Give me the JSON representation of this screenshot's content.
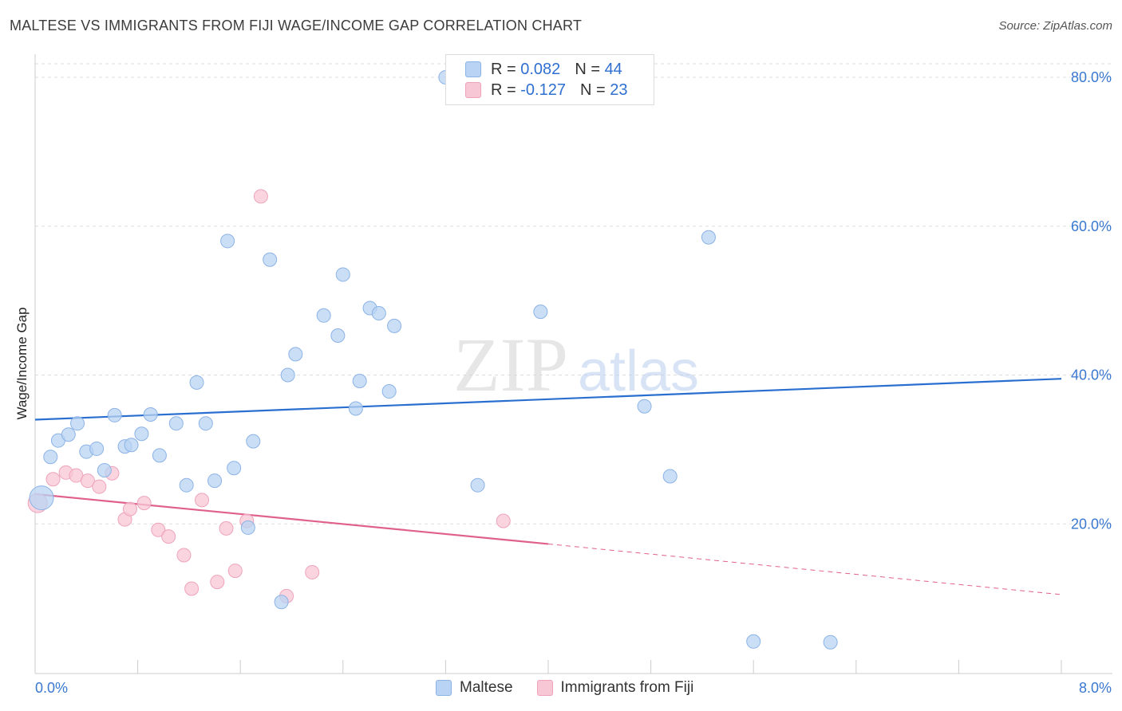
{
  "header": {
    "title": "MALTESE VS IMMIGRANTS FROM FIJI WAGE/INCOME GAP CORRELATION CHART",
    "source": "Source: ZipAtlas.com"
  },
  "watermark": {
    "zip": "ZIP",
    "atlas": "atlas"
  },
  "legend_top": {
    "rows": [
      {
        "r_label": "R =",
        "r_value": "0.082",
        "n_label": "N =",
        "n_value": "44"
      },
      {
        "r_label": "R =",
        "r_value": "-0.127",
        "n_label": "N =",
        "n_value": "23"
      }
    ]
  },
  "legend_bottom": {
    "items": [
      "Maltese",
      "Immigrants from Fiji"
    ]
  },
  "colors": {
    "maltese_fill": "#b8d3f3",
    "maltese_stroke": "#8cb3e6",
    "maltese_line": "#2a6fd0",
    "fiji_fill": "#f8c7d6",
    "fiji_stroke": "#eea3bb",
    "fiji_line": "#e0608c",
    "tick_label": "#3a78d0",
    "grid": "#dddddd"
  },
  "chart_data": {
    "type": "scatter",
    "title": "MALTESE VS IMMIGRANTS FROM FIJI WAGE/INCOME GAP CORRELATION CHART",
    "xlabel": "",
    "ylabel": "Wage/Income Gap",
    "xlim": [
      0,
      8
    ],
    "ylim": [
      0,
      80
    ],
    "x_tick_labels": [
      "0.0%",
      "8.0%"
    ],
    "y_ticks": [
      20,
      40,
      60,
      80
    ],
    "y_tick_labels": [
      "20.0%",
      "40.0%",
      "60.0%",
      "80.0%"
    ],
    "grid": "horizontal dashed",
    "legend_position": "bottom-center",
    "series": [
      {
        "name": "Maltese",
        "r": 0.082,
        "n": 44,
        "trend": {
          "x": [
            0,
            8
          ],
          "y": [
            34.0,
            39.5
          ]
        },
        "points": [
          [
            0.05,
            23.5
          ],
          [
            0.12,
            29.0
          ],
          [
            0.18,
            31.2
          ],
          [
            0.26,
            32.0
          ],
          [
            0.33,
            33.5
          ],
          [
            0.4,
            29.7
          ],
          [
            0.48,
            30.1
          ],
          [
            0.54,
            27.2
          ],
          [
            0.62,
            34.6
          ],
          [
            0.7,
            30.4
          ],
          [
            0.75,
            30.6
          ],
          [
            0.83,
            32.1
          ],
          [
            0.9,
            34.7
          ],
          [
            0.97,
            29.2
          ],
          [
            1.1,
            33.5
          ],
          [
            1.18,
            25.2
          ],
          [
            1.26,
            39.0
          ],
          [
            1.33,
            33.5
          ],
          [
            1.4,
            25.8
          ],
          [
            1.5,
            58.0
          ],
          [
            1.55,
            27.5
          ],
          [
            1.66,
            19.5
          ],
          [
            1.7,
            31.1
          ],
          [
            1.83,
            55.5
          ],
          [
            1.92,
            9.5
          ],
          [
            1.97,
            40.0
          ],
          [
            2.03,
            42.8
          ],
          [
            2.25,
            48.0
          ],
          [
            2.36,
            45.3
          ],
          [
            2.4,
            53.5
          ],
          [
            2.5,
            35.5
          ],
          [
            2.53,
            39.2
          ],
          [
            2.61,
            49.0
          ],
          [
            2.68,
            48.3
          ],
          [
            2.76,
            37.8
          ],
          [
            2.8,
            46.6
          ],
          [
            3.2,
            80.0
          ],
          [
            3.45,
            25.2
          ],
          [
            3.94,
            48.5
          ],
          [
            4.75,
            35.8
          ],
          [
            4.95,
            26.4
          ],
          [
            5.25,
            58.5
          ],
          [
            5.6,
            4.2
          ],
          [
            6.2,
            4.1
          ]
        ]
      },
      {
        "name": "Immigrants from Fiji",
        "r": -0.127,
        "n": 23,
        "trend": {
          "x": [
            0,
            4.0
          ],
          "y": [
            24.0,
            17.3
          ],
          "dashed_to": {
            "x": 8,
            "y": 10.5
          }
        },
        "points": [
          [
            0.02,
            22.8
          ],
          [
            0.14,
            26.0
          ],
          [
            0.24,
            26.9
          ],
          [
            0.32,
            26.5
          ],
          [
            0.41,
            25.8
          ],
          [
            0.5,
            25.0
          ],
          [
            0.6,
            26.8
          ],
          [
            0.7,
            20.6
          ],
          [
            0.74,
            22.0
          ],
          [
            0.85,
            22.8
          ],
          [
            0.96,
            19.2
          ],
          [
            1.04,
            18.3
          ],
          [
            1.16,
            15.8
          ],
          [
            1.22,
            11.3
          ],
          [
            1.3,
            23.2
          ],
          [
            1.42,
            12.2
          ],
          [
            1.49,
            19.4
          ],
          [
            1.56,
            13.7
          ],
          [
            1.65,
            20.4
          ],
          [
            1.76,
            64.0
          ],
          [
            1.96,
            10.3
          ],
          [
            2.16,
            13.5
          ],
          [
            3.65,
            20.4
          ]
        ]
      }
    ]
  }
}
